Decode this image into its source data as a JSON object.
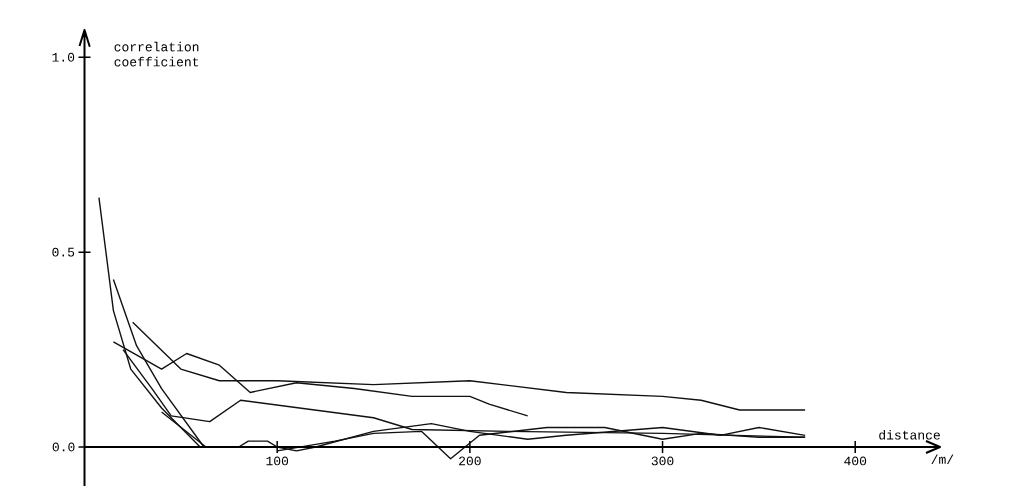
{
  "chart_data": {
    "type": "line",
    "xlabel": "distance",
    "ylabel": "correlation coefficient",
    "annotations": [
      "/m/"
    ],
    "xlim": [
      0,
      444
    ],
    "ylim": [
      -0.1,
      1.07
    ],
    "xticks": [
      100,
      200,
      300,
      400
    ],
    "yticks": [
      {
        "value": 0,
        "label": "0.0"
      },
      {
        "value": 0.5,
        "label": "0.5"
      },
      {
        "value": 1,
        "label": "1.0"
      }
    ],
    "grid": false,
    "marker": "none",
    "line_style": "solid",
    "series": [
      {
        "color": "#111111",
        "x": [
          7.5,
          15,
          24,
          40,
          60
        ],
        "values": [
          0.64,
          0.35,
          0.2,
          0.1,
          0
        ]
      },
      {
        "color": "#111111",
        "x": [
          15,
          27,
          40,
          62
        ],
        "values": [
          0.43,
          0.26,
          0.15,
          0
        ]
      },
      {
        "color": "#111111",
        "x": [
          25,
          50,
          70,
          100,
          150,
          200,
          250,
          300,
          320,
          340,
          374
        ],
        "values": [
          0.32,
          0.2,
          0.17,
          0.17,
          0.16,
          0.17,
          0.14,
          0.13,
          0.12,
          0.095,
          0.095
        ]
      },
      {
        "color": "#111111",
        "x": [
          15,
          40,
          53,
          70,
          86,
          110,
          140,
          170,
          200,
          210,
          230
        ],
        "values": [
          0.27,
          0.2,
          0.24,
          0.21,
          0.14,
          0.165,
          0.15,
          0.13,
          0.13,
          0.11,
          0.08
        ]
      },
      {
        "color": "#111111",
        "x": [
          20,
          35,
          45,
          65,
          81,
          150,
          170,
          220,
          300,
          374
        ],
        "values": [
          0.25,
          0.15,
          0.08,
          0.065,
          0.12,
          0.075,
          0.045,
          0.04,
          0.035,
          0.025
        ]
      },
      {
        "color": "#111111",
        "x": [
          40,
          63,
          80,
          85,
          95,
          100,
          110,
          120,
          150,
          180,
          200,
          230,
          250,
          300,
          330,
          350,
          374
        ],
        "values": [
          0.09,
          0,
          0,
          0.015,
          0.015,
          0,
          -0.01,
          0,
          0.04,
          0.06,
          0.04,
          0.02,
          0.03,
          0.05,
          0.03,
          0.05,
          0.03
        ]
      },
      {
        "color": "#111111",
        "x": [
          100,
          130,
          150,
          175,
          190,
          205,
          240,
          270,
          300,
          320,
          350,
          374
        ],
        "values": [
          -0.01,
          0.015,
          0.035,
          0.04,
          -0.03,
          0.03,
          0.05,
          0.05,
          0.02,
          0.035,
          0.025,
          0.025
        ]
      }
    ]
  }
}
